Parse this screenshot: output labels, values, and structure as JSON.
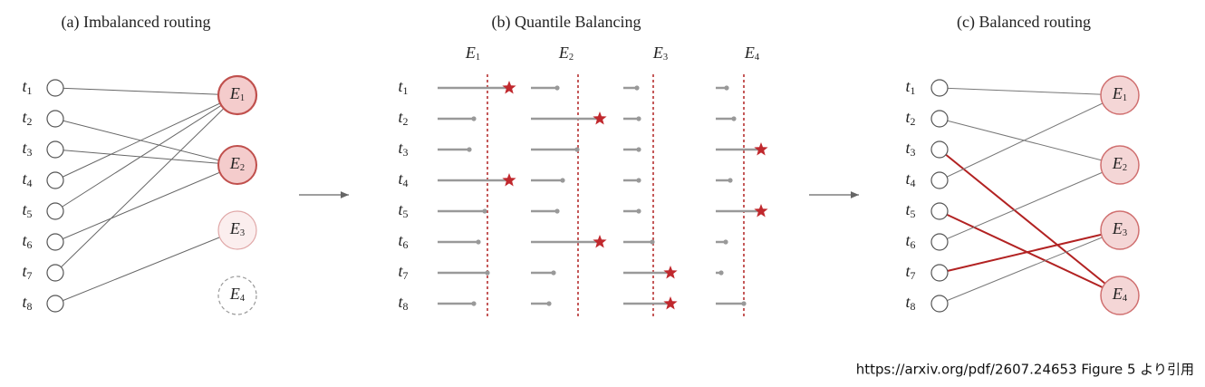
{
  "panels": [
    {
      "title": "(a) Imbalanced routing",
      "tokens": [
        {
          "letter": "t",
          "index": "1"
        },
        {
          "letter": "t",
          "index": "2"
        },
        {
          "letter": "t",
          "index": "3"
        },
        {
          "letter": "t",
          "index": "4"
        },
        {
          "letter": "t",
          "index": "5"
        },
        {
          "letter": "t",
          "index": "6"
        },
        {
          "letter": "t",
          "index": "7"
        },
        {
          "letter": "t",
          "index": "8"
        }
      ],
      "experts": [
        {
          "letter": "E",
          "index": "1"
        },
        {
          "letter": "E",
          "index": "2"
        },
        {
          "letter": "E",
          "index": "3"
        },
        {
          "letter": "E",
          "index": "4"
        }
      ]
    },
    {
      "title": "(b) Quantile Balancing",
      "tokens": [
        {
          "letter": "t",
          "index": "1"
        },
        {
          "letter": "t",
          "index": "2"
        },
        {
          "letter": "t",
          "index": "3"
        },
        {
          "letter": "t",
          "index": "4"
        },
        {
          "letter": "t",
          "index": "5"
        },
        {
          "letter": "t",
          "index": "6"
        },
        {
          "letter": "t",
          "index": "7"
        },
        {
          "letter": "t",
          "index": "8"
        }
      ],
      "experts": [
        {
          "letter": "E",
          "index": "1"
        },
        {
          "letter": "E",
          "index": "2"
        },
        {
          "letter": "E",
          "index": "3"
        },
        {
          "letter": "E",
          "index": "4"
        }
      ]
    },
    {
      "title": "(c) Balanced routing",
      "tokens": [
        {
          "letter": "t",
          "index": "1"
        },
        {
          "letter": "t",
          "index": "2"
        },
        {
          "letter": "t",
          "index": "3"
        },
        {
          "letter": "t",
          "index": "4"
        },
        {
          "letter": "t",
          "index": "5"
        },
        {
          "letter": "t",
          "index": "6"
        },
        {
          "letter": "t",
          "index": "7"
        },
        {
          "letter": "t",
          "index": "8"
        }
      ],
      "experts": [
        {
          "letter": "E",
          "index": "1"
        },
        {
          "letter": "E",
          "index": "2"
        },
        {
          "letter": "E",
          "index": "3"
        },
        {
          "letter": "E",
          "index": "4"
        }
      ]
    }
  ],
  "citation": "https://arxiv.org/pdf/2607.24653 Figure 5 より引用"
}
